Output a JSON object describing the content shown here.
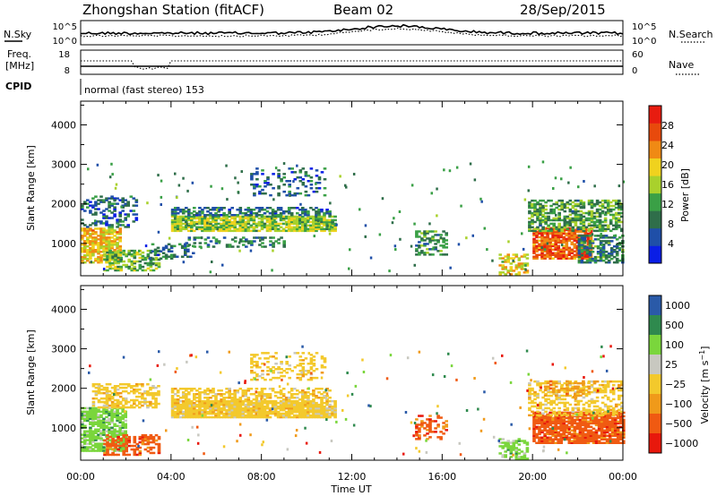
{
  "header": {
    "station": "Zhongshan Station (fitACF)",
    "beam": "Beam 02",
    "date": "28/Sep/2015"
  },
  "strip_sky": {
    "left_label": "N.Sky",
    "left_ticks": [
      "10^5",
      "10^0"
    ],
    "right_ticks": [
      "10^5",
      "10^0"
    ],
    "right_label": "N.Search"
  },
  "strip_freq": {
    "left_label_1": "Freq.",
    "left_label_2": "[MHz]",
    "left_ticks": [
      "18",
      "8"
    ],
    "right_ticks": [
      "60",
      "0"
    ],
    "right_label": "Nave"
  },
  "cpid": {
    "label": "CPID",
    "value": "normal (fast stereo) 153"
  },
  "colors": {
    "power": [
      "#0a1ee6",
      "#1f4fa8",
      "#2f6e4a",
      "#3aa046",
      "#a9d12c",
      "#f0d21e",
      "#f08a14",
      "#e84a0c",
      "#e81c10"
    ],
    "velocity": [
      "#e8180c",
      "#f05a12",
      "#f09a1a",
      "#f3c92c",
      "#c8c8c0",
      "#7ad63c",
      "#2f8a4e",
      "#2a5aa8"
    ]
  },
  "chart_data": [
    {
      "type": "heatmap",
      "name_label": "Power [dB]",
      "xlabel": "",
      "ylabel": "Slant Range [km]",
      "xlim": [
        0,
        24
      ],
      "ylim": [
        180,
        4600
      ],
      "yticks": [
        "1000",
        "2000",
        "3000",
        "4000"
      ],
      "xticks": [
        "00:00",
        "04:00",
        "08:00",
        "12:00",
        "16:00",
        "20:00",
        "00:00"
      ],
      "colorbar": {
        "min": 0,
        "max": 32,
        "ticks": [
          "4",
          "8",
          "12",
          "16",
          "20",
          "24",
          "28"
        ]
      },
      "regions": [
        {
          "t": [
            0.0,
            1.8
          ],
          "r": [
            500,
            1400
          ],
          "v": 20,
          "d": 0.75
        },
        {
          "t": [
            0.0,
            2.5
          ],
          "r": [
            1400,
            2200
          ],
          "v": 7,
          "d": 0.35
        },
        {
          "t": [
            1.0,
            3.5
          ],
          "r": [
            300,
            800
          ],
          "v": 14,
          "d": 0.55
        },
        {
          "t": [
            3.0,
            5.0
          ],
          "r": [
            600,
            1000
          ],
          "v": 8,
          "d": 0.35
        },
        {
          "t": [
            4.0,
            11.2
          ],
          "r": [
            1300,
            1700
          ],
          "v": 15,
          "d": 0.85
        },
        {
          "t": [
            4.0,
            11.0
          ],
          "r": [
            1700,
            1900
          ],
          "v": 8,
          "d": 0.55
        },
        {
          "t": [
            4.5,
            9.0
          ],
          "r": [
            900,
            1150
          ],
          "v": 9,
          "d": 0.3
        },
        {
          "t": [
            7.5,
            10.8
          ],
          "r": [
            2200,
            2900
          ],
          "v": 7,
          "d": 0.2
        },
        {
          "t": [
            14.8,
            16.2
          ],
          "r": [
            700,
            1300
          ],
          "v": 11,
          "d": 0.45
        },
        {
          "t": [
            18.5,
            19.8
          ],
          "r": [
            200,
            700
          ],
          "v": 19,
          "d": 0.5
        },
        {
          "t": [
            20.0,
            22.6
          ],
          "r": [
            600,
            1400
          ],
          "v": 26,
          "d": 0.85
        },
        {
          "t": [
            19.8,
            24.0
          ],
          "r": [
            1300,
            2100
          ],
          "v": 12,
          "d": 0.6
        },
        {
          "t": [
            22.0,
            24.0
          ],
          "r": [
            500,
            1200
          ],
          "v": 10,
          "d": 0.55
        }
      ]
    },
    {
      "type": "heatmap",
      "name_label": "Velocity [m s^-1]",
      "xlabel": "Time UT",
      "ylabel": "Slant Range [km]",
      "xlim": [
        0,
        24
      ],
      "ylim": [
        180,
        4600
      ],
      "yticks": [
        "1000",
        "2000",
        "3000",
        "4000"
      ],
      "xticks": [
        "00:00",
        "04:00",
        "08:00",
        "12:00",
        "16:00",
        "20:00",
        "00:00"
      ],
      "colorbar": {
        "ticks": [
          "1000",
          "500",
          "100",
          "25",
          "−25",
          "−100",
          "−500",
          "−1000"
        ]
      },
      "regions": [
        {
          "t": [
            0.0,
            2.0
          ],
          "r": [
            400,
            1500
          ],
          "c": 2,
          "d": 0.75
        },
        {
          "t": [
            0.5,
            3.5
          ],
          "r": [
            1500,
            2100
          ],
          "c": 4,
          "d": 0.55
        },
        {
          "t": [
            1.0,
            3.5
          ],
          "r": [
            300,
            800
          ],
          "c": 6,
          "d": 0.55
        },
        {
          "t": [
            4.0,
            11.2
          ],
          "r": [
            1250,
            1700
          ],
          "c": 4,
          "d": 0.9
        },
        {
          "t": [
            4.0,
            11.0
          ],
          "r": [
            1700,
            2000
          ],
          "c": 4,
          "d": 0.5
        },
        {
          "t": [
            7.5,
            10.8
          ],
          "r": [
            2200,
            2900
          ],
          "c": 4,
          "d": 0.3
        },
        {
          "t": [
            14.8,
            16.2
          ],
          "r": [
            700,
            1300
          ],
          "c": 6,
          "d": 0.35
        },
        {
          "t": [
            18.5,
            19.8
          ],
          "r": [
            200,
            700
          ],
          "c": 2,
          "d": 0.5
        },
        {
          "t": [
            20.0,
            24.0
          ],
          "r": [
            600,
            1400
          ],
          "c": 6,
          "d": 0.85
        },
        {
          "t": [
            19.8,
            24.0
          ],
          "r": [
            1300,
            2200
          ],
          "c": 4,
          "d": 0.45
        },
        {
          "t": [
            20.5,
            22.5
          ],
          "r": [
            1800,
            2200
          ],
          "c": 5,
          "d": 0.35
        }
      ]
    }
  ]
}
